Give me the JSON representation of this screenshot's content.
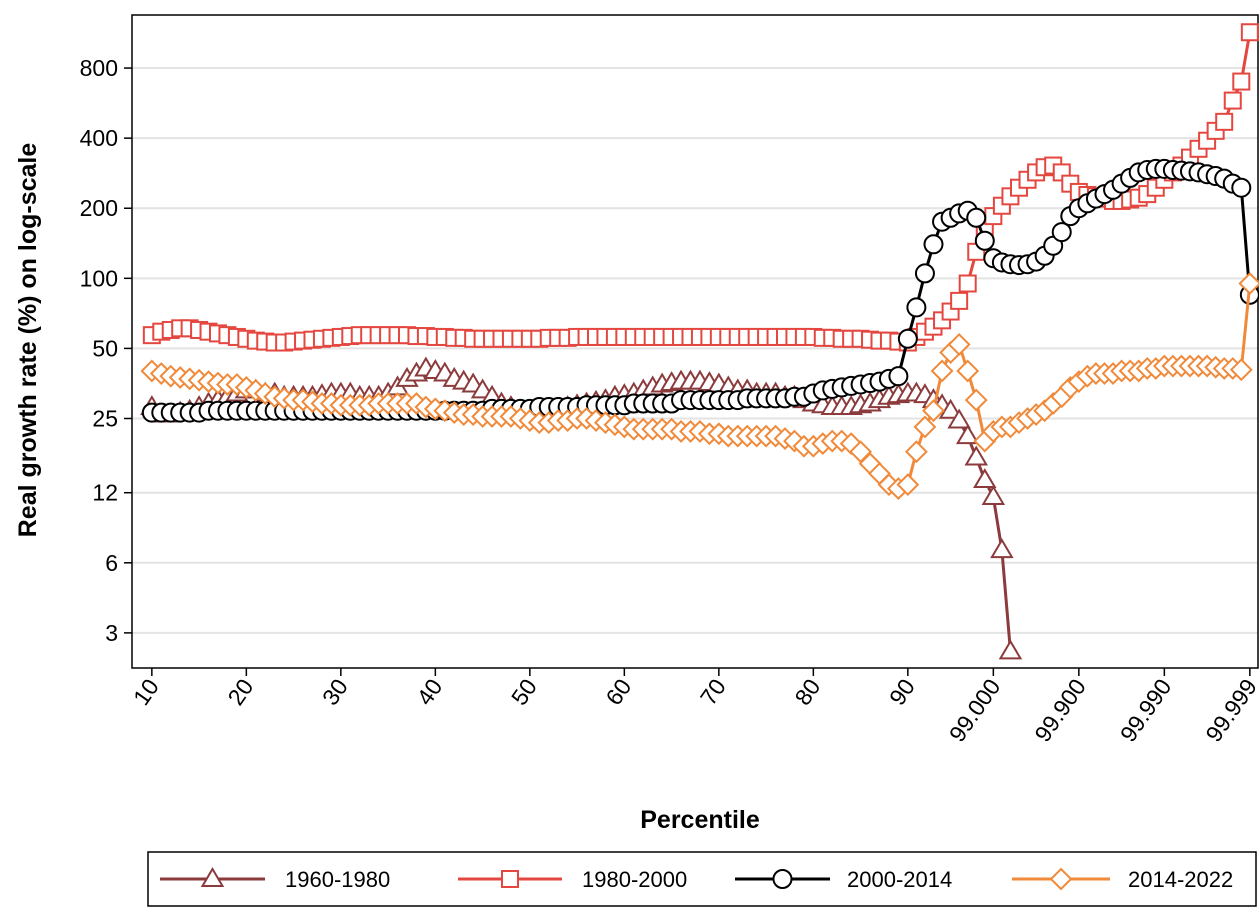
{
  "chart_data": {
    "type": "line",
    "xlabel": "Percentile",
    "ylabel": "Real growth rate (%) on log-scale",
    "yscale": "log",
    "xscale": "linear-then-log-tail",
    "grid": true,
    "legend": "bottom",
    "x": [
      10,
      11,
      12,
      13,
      14,
      15,
      16,
      17,
      18,
      19,
      20,
      21,
      22,
      23,
      24,
      25,
      26,
      27,
      28,
      29,
      30,
      31,
      32,
      33,
      34,
      35,
      36,
      37,
      38,
      39,
      40,
      41,
      42,
      43,
      44,
      45,
      46,
      47,
      48,
      49,
      50,
      51,
      52,
      53,
      54,
      55,
      56,
      57,
      58,
      59,
      60,
      61,
      62,
      63,
      64,
      65,
      66,
      67,
      68,
      69,
      70,
      71,
      72,
      73,
      74,
      75,
      76,
      77,
      78,
      79,
      80,
      81,
      82,
      83,
      84,
      85,
      86,
      87,
      88,
      89,
      90,
      92.057,
      93.69,
      94.988,
      96.019,
      96.838,
      97.488,
      98.005,
      98.415,
      98.741,
      99,
      99.2057,
      99.369,
      99.4988,
      99.6019,
      99.6838,
      99.7488,
      99.8005,
      99.8415,
      99.8741,
      99.9,
      99.92057,
      99.9369,
      99.94988,
      99.96019,
      99.96838,
      99.97488,
      99.98005,
      99.98415,
      99.98741,
      99.99,
      99.992057,
      99.99369,
      99.994988,
      99.996019,
      99.996838,
      99.997488,
      99.998005,
      99.998415,
      99.998741,
      99.999
    ],
    "xlim": [
      7.9,
      99.9992
    ],
    "xticks": [
      10,
      20,
      30,
      40,
      50,
      60,
      70,
      80,
      90,
      {
        "value": 99,
        "label": "99.000"
      },
      {
        "value": 99.9,
        "label": "99.900"
      },
      {
        "value": 99.99,
        "label": "99.990"
      },
      {
        "value": 99.999,
        "label": "99.999"
      }
    ],
    "ylim": [
      2.12,
      1352
    ],
    "yticks": [
      3,
      6,
      12,
      25,
      50,
      100,
      200,
      400,
      800
    ],
    "series": [
      {
        "name": "1960-1980",
        "color": "#8c3b3d",
        "marker": "triangle",
        "values": [
          28,
          26,
          26,
          26.5,
          27,
          28,
          29,
          30,
          31,
          32,
          33,
          33,
          32,
          32,
          31,
          31,
          31,
          31,
          31.5,
          32,
          32,
          32,
          31,
          31,
          31,
          32,
          34,
          37,
          39,
          41,
          40,
          39,
          37,
          36,
          35,
          33,
          31,
          29,
          28,
          27,
          27,
          27,
          27,
          27.5,
          28,
          28.5,
          29,
          29.5,
          30,
          31,
          31.5,
          32,
          33,
          34,
          35,
          35.5,
          36,
          36,
          36,
          35.5,
          35,
          34,
          33,
          33,
          32,
          32,
          32,
          31,
          31,
          30,
          29,
          28.5,
          28,
          28,
          28,
          28.5,
          29,
          30,
          31,
          31.5,
          32,
          32,
          31.5,
          30,
          28.5,
          27,
          24.5,
          21,
          17,
          13.6,
          11.5,
          6.8,
          2.5,
          null,
          null,
          null,
          null,
          null,
          null,
          null,
          null,
          null,
          null,
          null,
          null,
          null,
          null,
          null,
          null,
          null,
          null,
          null,
          null,
          null,
          null,
          null,
          null,
          null,
          null,
          null,
          null
        ]
      },
      {
        "name": "1980-2000",
        "color": "#e4473f",
        "marker": "square",
        "values": [
          57,
          59,
          60,
          61,
          61,
          60,
          59,
          58,
          57,
          56,
          55,
          54,
          53.5,
          53,
          53,
          53.5,
          54,
          54.5,
          55,
          55.5,
          56,
          56.5,
          57,
          57,
          57,
          57,
          57,
          57,
          56.5,
          56.5,
          56,
          56,
          55.5,
          55.5,
          55,
          55,
          55,
          55,
          55,
          55,
          55,
          55,
          55.5,
          55.5,
          55.5,
          56,
          56,
          56,
          56,
          56,
          56,
          56,
          56,
          56,
          56,
          56,
          56,
          56,
          56,
          56,
          56,
          56,
          56,
          56,
          56,
          56,
          56,
          56,
          56,
          56,
          56,
          55.5,
          55.5,
          55,
          55,
          55,
          54.5,
          54,
          54,
          53.5,
          53,
          56,
          59,
          62,
          66,
          72,
          80,
          95,
          130,
          160,
          185,
          205,
          225,
          245,
          265,
          285,
          300,
          305,
          285,
          255,
          235,
          228,
          225,
          220,
          215,
          215,
          218,
          222,
          230,
          245,
          265,
          285,
          305,
          330,
          360,
          390,
          430,
          470,
          580,
          700,
          1140
        ]
      },
      {
        "name": "2000-2014",
        "color": "#000000",
        "marker": "circle",
        "values": [
          26.5,
          26.5,
          26.5,
          26.5,
          26.5,
          26.5,
          27,
          27,
          27,
          27,
          27,
          27,
          27,
          27,
          27,
          27,
          27,
          27,
          27,
          27,
          27,
          27,
          27,
          27,
          27,
          27,
          27,
          27,
          27,
          27,
          27,
          27,
          27,
          27,
          27,
          27,
          27.5,
          27.5,
          27.5,
          27.5,
          27.5,
          28,
          28,
          28,
          28,
          28,
          28.5,
          28.5,
          28.5,
          28.5,
          28.5,
          29,
          29,
          29,
          29,
          29,
          30,
          30,
          30,
          30,
          30,
          30,
          30,
          30.5,
          30.5,
          30.5,
          30.5,
          30.5,
          31,
          31,
          32,
          33,
          33.5,
          34,
          34.5,
          35,
          35.5,
          36,
          37,
          38,
          55,
          75,
          105,
          140,
          175,
          182,
          190,
          195,
          182,
          145,
          122,
          117,
          115,
          114,
          115,
          118,
          125,
          138,
          158,
          185,
          200,
          210,
          220,
          230,
          240,
          255,
          270,
          285,
          292,
          295,
          295,
          292,
          290,
          288,
          285,
          280,
          275,
          268,
          255,
          245,
          85
        ]
      },
      {
        "name": "2014-2022",
        "color": "#f08a3a",
        "marker": "diamond",
        "values": [
          40,
          39,
          38,
          37.5,
          37,
          36.5,
          36,
          35.5,
          35,
          35,
          34,
          33,
          32,
          31,
          30.5,
          30,
          30,
          29.5,
          29,
          29,
          28.5,
          28.5,
          28.5,
          28.5,
          29,
          29,
          29,
          29,
          29,
          28,
          27.5,
          27,
          26.5,
          26,
          26,
          25.5,
          25.5,
          25.5,
          25.5,
          25,
          24.5,
          24,
          24,
          24.5,
          24.5,
          25,
          25,
          24.5,
          24,
          23.5,
          23,
          22.5,
          22.5,
          22.5,
          22.5,
          22.5,
          22,
          22,
          22,
          21.5,
          21.5,
          21,
          21,
          21,
          21,
          21,
          21,
          20.5,
          20,
          19,
          19,
          19.5,
          20,
          20,
          19.5,
          18,
          16,
          14.5,
          13,
          12.5,
          13,
          18,
          23,
          27,
          40,
          48,
          52,
          40,
          30,
          20,
          22,
          23,
          23,
          24,
          25,
          26,
          27,
          29,
          31,
          34,
          36,
          38,
          39,
          39,
          39,
          40,
          40,
          40,
          41,
          41,
          42,
          42,
          42,
          42,
          42,
          42,
          41.5,
          41,
          41,
          40.5,
          95
        ]
      }
    ]
  }
}
